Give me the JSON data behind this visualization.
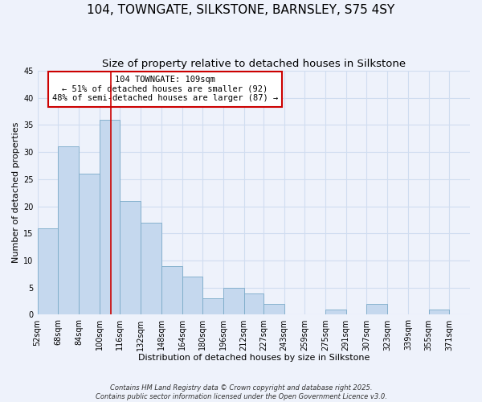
{
  "title": "104, TOWNGATE, SILKSTONE, BARNSLEY, S75 4SY",
  "subtitle": "Size of property relative to detached houses in Silkstone",
  "xlabel": "Distribution of detached houses by size in Silkstone",
  "ylabel": "Number of detached properties",
  "background_color": "#eef2fb",
  "bar_color": "#c5d8ee",
  "bar_edge_color": "#7aaac8",
  "bins": [
    "52sqm",
    "68sqm",
    "84sqm",
    "100sqm",
    "116sqm",
    "132sqm",
    "148sqm",
    "164sqm",
    "180sqm",
    "196sqm",
    "212sqm",
    "227sqm",
    "243sqm",
    "259sqm",
    "275sqm",
    "291sqm",
    "307sqm",
    "323sqm",
    "339sqm",
    "355sqm",
    "371sqm"
  ],
  "counts": [
    16,
    31,
    26,
    36,
    21,
    17,
    9,
    7,
    3,
    5,
    4,
    2,
    0,
    0,
    1,
    0,
    2,
    0,
    0,
    1,
    0
  ],
  "bin_edges": [
    52,
    68,
    84,
    100,
    116,
    132,
    148,
    164,
    180,
    196,
    212,
    227,
    243,
    259,
    275,
    291,
    307,
    323,
    339,
    355,
    371,
    387
  ],
  "ylim": [
    0,
    45
  ],
  "yticks": [
    0,
    5,
    10,
    15,
    20,
    25,
    30,
    35,
    40,
    45
  ],
  "property_size": 109,
  "annotation_title": "104 TOWNGATE: 109sqm",
  "annotation_line1": "← 51% of detached houses are smaller (92)",
  "annotation_line2": "48% of semi-detached houses are larger (87) →",
  "vline_color": "#cc0000",
  "annotation_box_color": "#ffffff",
  "annotation_box_edge_color": "#cc0000",
  "footer_line1": "Contains HM Land Registry data © Crown copyright and database right 2025.",
  "footer_line2": "Contains public sector information licensed under the Open Government Licence v3.0.",
  "grid_color": "#d0ddf0",
  "title_fontsize": 11,
  "subtitle_fontsize": 9.5,
  "axis_label_fontsize": 8,
  "tick_fontsize": 7,
  "annotation_fontsize": 7.5,
  "footer_fontsize": 6
}
